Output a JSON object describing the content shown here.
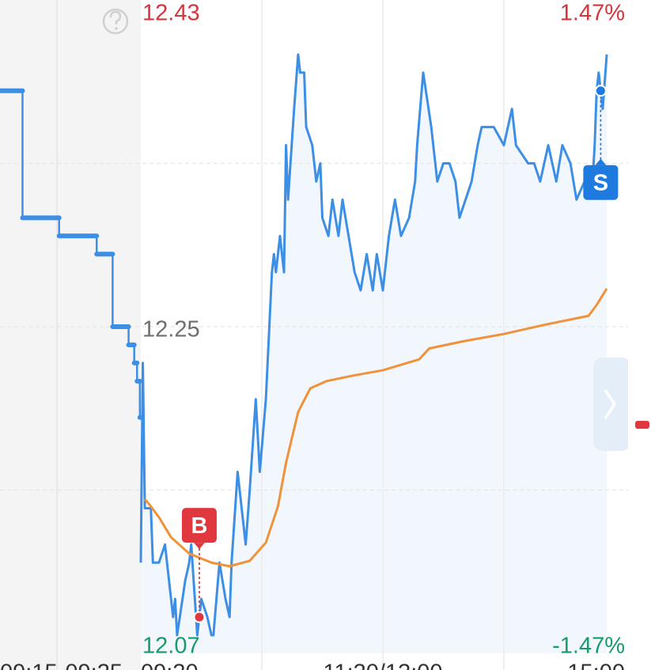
{
  "chart_data": [
    {
      "type": "step",
      "xlim": [
        0,
        15
      ],
      "ylim": [
        12.07,
        12.43
      ],
      "xticks": [
        {
          "value": 0,
          "label": "09:15"
        },
        {
          "value": 10,
          "label": "09:25"
        }
      ],
      "background": "#f4f4f4",
      "x": [
        0,
        2.4,
        6.3,
        10.3,
        12.0,
        13.7,
        14.0,
        14.3,
        14.6,
        14.9
      ],
      "series": [
        {
          "color": "#3d8fe6",
          "values": [
            12.38,
            12.31,
            12.3,
            12.29,
            12.25,
            12.24,
            12.24,
            12.23,
            12.22,
            12.2
          ]
        }
      ]
    },
    {
      "type": "line",
      "xlim": [
        0,
        240
      ],
      "ylim": [
        12.07,
        12.43
      ],
      "xticks": [
        {
          "value": 0,
          "label": "09:30"
        },
        {
          "value": 120,
          "label": "11:30/13:00"
        },
        {
          "value": 240,
          "label": "15:00"
        }
      ],
      "xgrid": [
        60,
        120,
        180
      ],
      "yticks": [
        12.07,
        12.25,
        12.43
      ],
      "ygrid": [
        12.16,
        12.25,
        12.34
      ],
      "y2lim": [
        -1.47,
        1.47
      ],
      "y2ticks": [
        {
          "value": -1.47,
          "label": "-1.47%"
        },
        {
          "value": 1.47,
          "label": "1.47%"
        }
      ],
      "up_color": "#d2373c",
      "down_color": "#1a9a6a",
      "flat_color": "#6f6f6f",
      "series": [
        {
          "color": "#3d8fe6",
          "fill": "#f2f7fd",
          "x": [
            0,
            1,
            2,
            5,
            6,
            9,
            12,
            13,
            16,
            17,
            18,
            22,
            24,
            25,
            28,
            30,
            33,
            35,
            36,
            39,
            42,
            44,
            45,
            48,
            50,
            52,
            54,
            57,
            59,
            62,
            65,
            66,
            67,
            69,
            71,
            72,
            73,
            76,
            78,
            79,
            81,
            82,
            85,
            87,
            89,
            90,
            93,
            95,
            98,
            100,
            103,
            106,
            109,
            112,
            115,
            117,
            120,
            123,
            126,
            129,
            133,
            136,
            137,
            140,
            144,
            147,
            150,
            153,
            156,
            158,
            161,
            164,
            167,
            169,
            172,
            175,
            180,
            184,
            186,
            192,
            195,
            198,
            202,
            206,
            209,
            213,
            216,
            220,
            224,
            225,
            226,
            227,
            229,
            231
          ],
          "values": [
            12.12,
            12.23,
            12.15,
            12.15,
            12.12,
            12.12,
            12.13,
            12.12,
            12.09,
            12.1,
            12.08,
            12.11,
            12.12,
            12.13,
            12.08,
            12.1,
            12.09,
            12.08,
            12.08,
            12.12,
            12.1,
            12.09,
            12.12,
            12.17,
            12.15,
            12.13,
            12.16,
            12.21,
            12.17,
            12.21,
            12.28,
            12.29,
            12.28,
            12.3,
            12.28,
            12.35,
            12.32,
            12.37,
            12.4,
            12.39,
            12.39,
            12.36,
            12.35,
            12.33,
            12.34,
            12.31,
            12.3,
            12.32,
            12.3,
            12.32,
            12.3,
            12.28,
            12.27,
            12.29,
            12.27,
            12.29,
            12.27,
            12.3,
            12.32,
            12.3,
            12.31,
            12.33,
            12.35,
            12.39,
            12.36,
            12.33,
            12.34,
            12.34,
            12.33,
            12.31,
            12.32,
            12.33,
            12.35,
            12.36,
            12.36,
            12.36,
            12.35,
            12.37,
            12.35,
            12.34,
            12.34,
            12.33,
            12.35,
            12.33,
            12.35,
            12.34,
            12.32,
            12.33,
            12.33,
            12.35,
            12.38,
            12.39,
            12.37,
            12.4
          ]
        },
        {
          "color": "#f0923a",
          "x": [
            2,
            5,
            9,
            15,
            24,
            35,
            44,
            54,
            62,
            68,
            72,
            78,
            84,
            92,
            105,
            120,
            138,
            143,
            160,
            180,
            200,
            222,
            226,
            231
          ],
          "values": [
            12.155,
            12.151,
            12.145,
            12.134,
            12.125,
            12.12,
            12.118,
            12.121,
            12.131,
            12.151,
            12.175,
            12.203,
            12.216,
            12.22,
            12.223,
            12.226,
            12.232,
            12.238,
            12.242,
            12.246,
            12.251,
            12.256,
            12.262,
            12.271
          ]
        }
      ],
      "trades": [
        {
          "label": "B",
          "x": 29,
          "price": 12.09,
          "color": "#e0383e",
          "placement": "above"
        },
        {
          "label": "S",
          "x": 228,
          "price": 12.38,
          "color": "#1f7ae0",
          "placement": "below"
        }
      ]
    }
  ]
}
